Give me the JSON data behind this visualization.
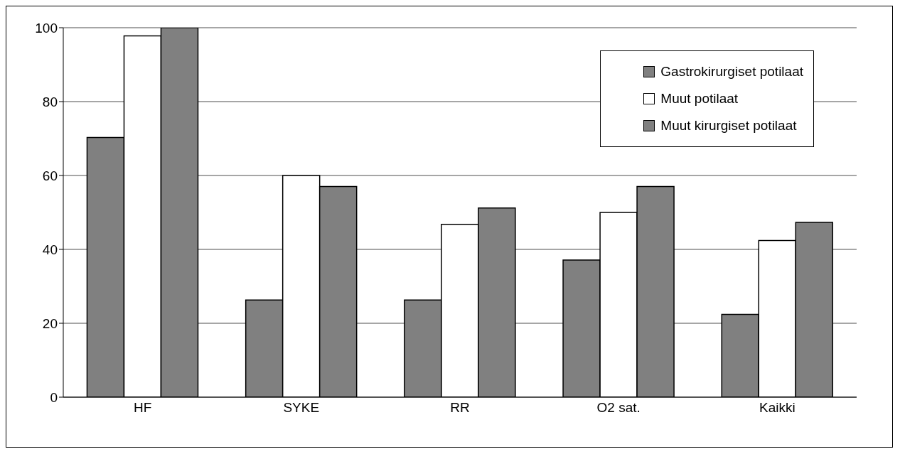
{
  "chart_data": {
    "type": "bar",
    "categories": [
      "HF",
      "SYKE",
      "RR",
      "O2 sat.",
      "Kaikki"
    ],
    "series": [
      {
        "name": "Gastrokirurgiset potilaat",
        "color": "#808080",
        "values": [
          70.3,
          26.3,
          26.3,
          37.1,
          22.4
        ]
      },
      {
        "name": "Muut potilaat",
        "color": "#ffffff",
        "values": [
          97.8,
          60,
          46.8,
          50,
          42.4
        ]
      },
      {
        "name": "Muut kirurgiset potilaat",
        "color": "#808080",
        "values": [
          100,
          57,
          51.2,
          57,
          47.3
        ]
      }
    ],
    "ylim": [
      0,
      100
    ],
    "yticks": [
      0,
      20,
      40,
      60,
      80,
      100
    ],
    "grid": "y",
    "legend": "top right"
  }
}
